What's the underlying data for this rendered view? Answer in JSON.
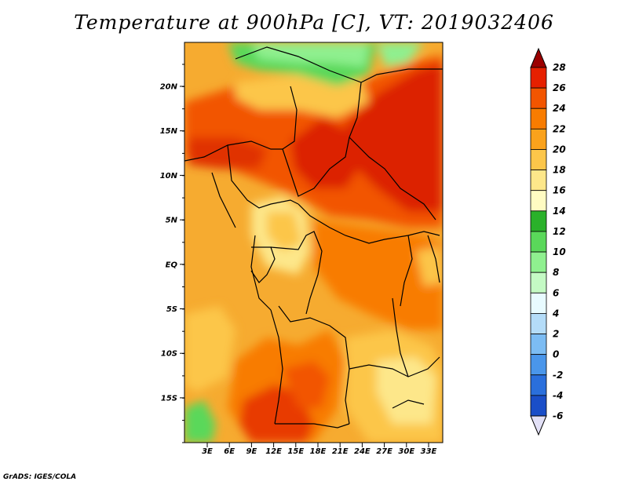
{
  "title": "Temperature at 900hPa [C], VT: 2019032406",
  "credit": "GrADS: IGES/COLA",
  "map": {
    "lat_labels": [
      "20N",
      "15N",
      "10N",
      "5N",
      "EQ",
      "5S",
      "10S",
      "15S"
    ],
    "lon_labels": [
      "3E",
      "6E",
      "9E",
      "12E",
      "15E",
      "18E",
      "21E",
      "24E",
      "27E",
      "30E",
      "33E"
    ]
  },
  "colorbar": {
    "levels": [
      "28",
      "26",
      "24",
      "22",
      "20",
      "18",
      "16",
      "14",
      "12",
      "10",
      "8",
      "6",
      "4",
      "2",
      "0",
      "-2",
      "-4",
      "-6"
    ],
    "colors": [
      "#9b0000",
      "#e62000",
      "#f25500",
      "#f87c00",
      "#faa21c",
      "#fcc64a",
      "#fde78a",
      "#fffbc2",
      "#2ab12a",
      "#5ad85a",
      "#8ff08f",
      "#c4fac4",
      "#e8fbff",
      "#b4dcf8",
      "#7cbcf3",
      "#4a96ea",
      "#2a6fdc",
      "#1a4ec8",
      "#0f30a8",
      "#071a7a",
      "#e2e0f6"
    ]
  }
}
